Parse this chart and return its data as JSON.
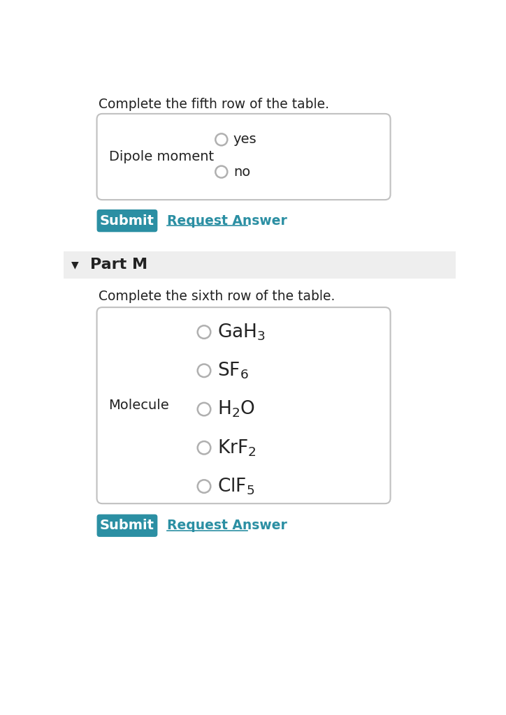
{
  "white": "#ffffff",
  "teal": "#2b8fa3",
  "text_dark": "#222222",
  "text_link": "#2b8fa3",
  "part_label": "Part M",
  "arrow": "▼",
  "section1_instruction": "Complete the fifth row of the table.",
  "section1_label": "Dipole moment",
  "section1_options": [
    "yes",
    "no"
  ],
  "section2_instruction": "Complete the sixth row of the table.",
  "section2_label": "Molecule",
  "section2_display": [
    "$\\mathregular{GaH_3}$",
    "$\\mathregular{SF_6}$",
    "$\\mathregular{H_2O}$",
    "$\\mathregular{KrF_2}$",
    "$\\mathregular{ClF_5}$"
  ],
  "submit_text": "Submit",
  "request_text": "Request Answer"
}
